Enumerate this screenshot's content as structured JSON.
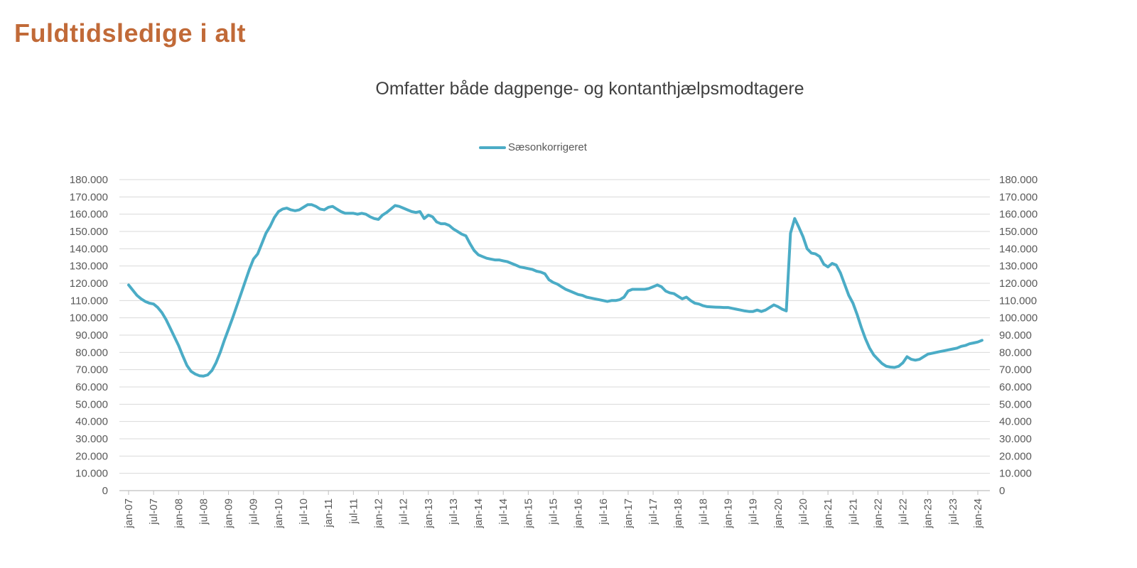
{
  "page": {
    "title": "Fuldtidsledige i alt"
  },
  "chart": {
    "subtitle": "Omfatter både dagpenge- og kontanthjælpsmodtagere",
    "legend": {
      "label": "Sæsonkorrigeret"
    }
  },
  "colors": {
    "title": "#C16A38",
    "subtitle": "#404040",
    "axis_text": "#595959",
    "gridline": "#D9D9D9",
    "axis_line": "#BFBFBF",
    "series": "#4BACC6"
  },
  "chart_data": {
    "type": "line",
    "title": "Omfatter både dagpenge- og kontanthjælpsmodtagere",
    "frequency": "monthly",
    "x_start": "jan-07",
    "x_end": "feb-24",
    "x_tick_labels": [
      "jan-07",
      "jul-07",
      "jan-08",
      "jul-08",
      "jan-09",
      "jul-09",
      "jan-10",
      "jul-10",
      "jan-11",
      "jul-11",
      "jan-12",
      "jul-12",
      "jan-13",
      "jul-13",
      "jan-14",
      "jul-14",
      "jan-15",
      "jul-15",
      "jan-16",
      "jul-16",
      "jan-17",
      "jul-17",
      "jan-18",
      "jul-18",
      "jan-19",
      "jul-19",
      "jan-20",
      "jul-20",
      "jan-21",
      "jul-21",
      "jan-22",
      "jul-22",
      "jan-23",
      "jul-23",
      "jan-24"
    ],
    "y_ticks": [
      0,
      10000,
      20000,
      30000,
      40000,
      50000,
      60000,
      70000,
      80000,
      90000,
      100000,
      110000,
      120000,
      130000,
      140000,
      150000,
      160000,
      170000,
      180000
    ],
    "y_tick_labels": [
      "0",
      "10.000",
      "20.000",
      "30.000",
      "40.000",
      "50.000",
      "60.000",
      "70.000",
      "80.000",
      "90.000",
      "100.000",
      "110.000",
      "120.000",
      "130.000",
      "140.000",
      "150.000",
      "160.000",
      "170.000",
      "180.000"
    ],
    "ylim": [
      0,
      180000
    ],
    "grid": true,
    "legend_position": "top-center",
    "dual_y_axis": true,
    "series": [
      {
        "name": "Sæsonkorrigeret",
        "color": "#4BACC6",
        "values": [
          119000,
          116000,
          113000,
          111000,
          109500,
          108500,
          108000,
          106000,
          103000,
          99000,
          94000,
          89000,
          84000,
          78000,
          72500,
          69000,
          67500,
          66500,
          66300,
          67000,
          69500,
          74000,
          80000,
          87000,
          93500,
          100000,
          107000,
          114000,
          121000,
          128000,
          134000,
          137000,
          143000,
          149000,
          153000,
          158000,
          161500,
          163000,
          163500,
          162500,
          162000,
          162500,
          164000,
          165500,
          165500,
          164500,
          163000,
          162500,
          164000,
          164500,
          163000,
          161500,
          160500,
          160500,
          160500,
          160000,
          160500,
          160000,
          158500,
          157500,
          157000,
          159500,
          161000,
          163000,
          165000,
          164500,
          163500,
          162500,
          161500,
          161000,
          161500,
          157500,
          159500,
          158500,
          155500,
          154500,
          154500,
          153500,
          151500,
          150000,
          148500,
          147500,
          143000,
          139000,
          136500,
          135500,
          134500,
          134000,
          133500,
          133500,
          133000,
          132500,
          131500,
          130500,
          129500,
          129000,
          128500,
          128000,
          127000,
          126500,
          125500,
          122000,
          120500,
          119500,
          118000,
          116500,
          115500,
          114500,
          113500,
          113000,
          112000,
          111500,
          111000,
          110500,
          110000,
          109500,
          110000,
          110000,
          110500,
          112000,
          115500,
          116500,
          116500,
          116500,
          116500,
          117000,
          118000,
          119000,
          118000,
          115500,
          114500,
          114000,
          112500,
          111000,
          112000,
          110000,
          108500,
          108000,
          107000,
          106500,
          106300,
          106200,
          106100,
          106000,
          106000,
          105500,
          105000,
          104500,
          104000,
          103700,
          103700,
          104500,
          103700,
          104500,
          106000,
          107500,
          106500,
          105000,
          104000,
          149000,
          157500,
          152500,
          147000,
          140000,
          137500,
          137000,
          135500,
          131000,
          129500,
          131500,
          130500,
          126000,
          119500,
          113000,
          108500,
          102000,
          94500,
          88000,
          82500,
          78500,
          76000,
          73500,
          72000,
          71500,
          71300,
          72000,
          74000,
          77500,
          76000,
          75500,
          76000,
          77500,
          79000,
          79500,
          80000,
          80500,
          81000,
          81500,
          82000,
          82500,
          83500,
          84000,
          85000,
          85500,
          86000,
          87000
        ]
      }
    ]
  }
}
